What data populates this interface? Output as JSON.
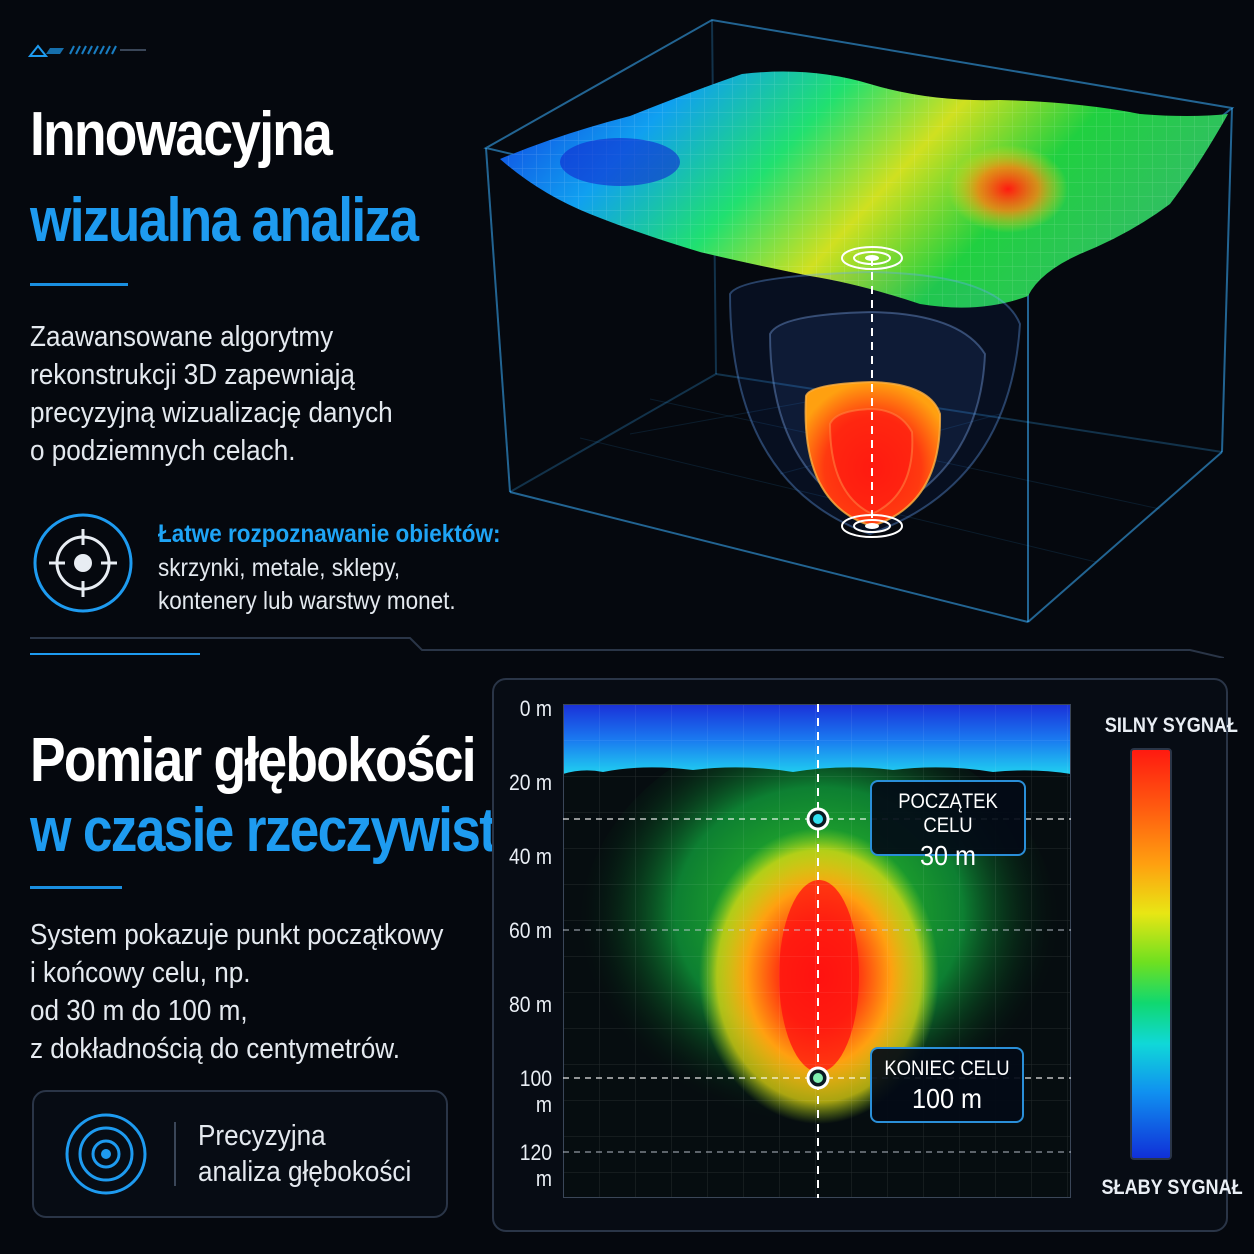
{
  "top": {
    "heading_line1": "Innowacyjna",
    "heading_line2": "wizualna analiza",
    "paragraph": [
      "Zaawansowane algorytmy",
      "rekonstrukcji 3D zapewniają",
      "precyzyjną wizualizację danych",
      "o podziemnych celach."
    ],
    "feature_title": "Łatwe rozpoznawanie obiektów:",
    "feature_lines": [
      "skrzynki, metale, sklepy,",
      "kontenery lub warstwy monet."
    ]
  },
  "bottom": {
    "heading_line1": "Pomiar głębokości",
    "heading_line2": "w czasie rzeczywistym",
    "paragraph": [
      "System pokazuje punkt początkowy",
      "i końcowy celu, np.",
      "od 30 m do 100 m,",
      "z dokładnością do centymetrów."
    ],
    "box_lines": [
      "Precyzyjna",
      "analiza głębokości"
    ]
  },
  "depth_chart": {
    "depth_labels": [
      "0 m",
      "20 m",
      "40 m",
      "60 m",
      "80 m",
      "100 m",
      "120 m"
    ],
    "depth_values": [
      0,
      20,
      40,
      60,
      80,
      100,
      120
    ],
    "target_start": {
      "label": "POCZĄTEK CELU",
      "value": "30 m",
      "depth": 30
    },
    "target_end": {
      "label": "KONIEC CELU",
      "value": "100 m",
      "depth": 100
    },
    "legend_top": "SILNY SYGNAŁ",
    "legend_bottom": "SŁABY SYGNAŁ"
  },
  "colors": {
    "accent_blue": "#1e9bf0",
    "signal_strong": "#ff1a10",
    "signal_weak": "#1030d8"
  },
  "icons": {
    "target_icon": "crosshair-target",
    "depth_icon": "concentric-target"
  }
}
